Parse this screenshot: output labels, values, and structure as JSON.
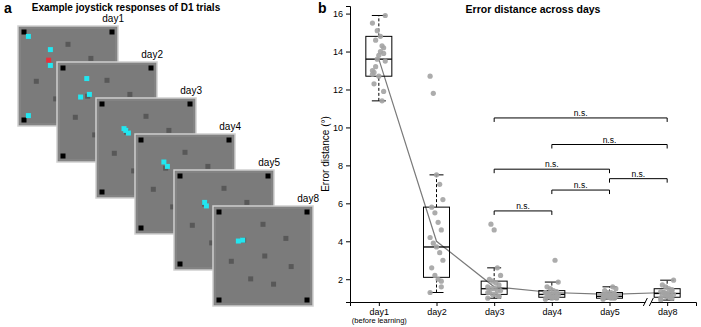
{
  "panel_a": {
    "panel_label": "a",
    "title": "Example joystick responses of D1 trials",
    "days": [
      "day1",
      "day2",
      "day3",
      "day4",
      "day5",
      "day8"
    ],
    "target": [
      0.28,
      0.32
    ],
    "target_marked": [
      true,
      false,
      false,
      false,
      false,
      false
    ],
    "target_color": "#e8303c",
    "response_color": "#22e6f0",
    "responses": [
      [
        [
          0.05,
          0.05
        ],
        [
          0.3,
          0.2
        ],
        [
          0.05,
          0.95
        ],
        [
          0.3,
          0.38
        ]
      ],
      [
        [
          0.27,
          0.12
        ],
        [
          0.2,
          0.33
        ],
        [
          0.3,
          0.3
        ]
      ],
      [
        [
          0.27,
          0.3
        ],
        [
          0.3,
          0.33
        ],
        [
          0.25,
          0.28
        ]
      ],
      [
        [
          0.26,
          0.25
        ],
        [
          0.3,
          0.3
        ]
      ],
      [
        [
          0.28,
          0.3
        ],
        [
          0.3,
          0.34
        ]
      ],
      [
        [
          0.22,
          0.33
        ],
        [
          0.27,
          0.32
        ]
      ]
    ]
  },
  "chart_data": {
    "type": "box",
    "panel_label": "b",
    "title": "Error distance across days",
    "y_label": "Error distance (°)",
    "categories": [
      "day1",
      "day2",
      "day3",
      "day4",
      "day5",
      "day8"
    ],
    "category_notes": [
      "(before learning)",
      null,
      null,
      null,
      null,
      null
    ],
    "boxes": {
      "whisker_low": [
        11.4,
        1.3,
        1.0,
        0.95,
        0.95,
        0.9
      ],
      "q1": [
        12.7,
        2.1,
        1.2,
        1.05,
        1.0,
        1.05
      ],
      "median": [
        13.6,
        3.7,
        1.5,
        1.2,
        1.1,
        1.25
      ],
      "q3": [
        14.8,
        5.8,
        1.9,
        1.4,
        1.3,
        1.5
      ],
      "whisker_high": [
        15.9,
        7.5,
        2.6,
        1.85,
        1.6,
        1.95
      ]
    },
    "points": [
      [
        13.0,
        13.9,
        14.8,
        15.1,
        12.3,
        13.5,
        14.3,
        12.7,
        13.2,
        15.5,
        11.9,
        14.0,
        13.6,
        12.9,
        15.9,
        11.4,
        13.8,
        14.6,
        12.8,
        14.2
      ],
      [
        1.3,
        1.6,
        2.0,
        2.2,
        2.6,
        3.0,
        3.4,
        3.7,
        3.9,
        4.2,
        4.6,
        5.0,
        5.5,
        5.8,
        6.2,
        7.0,
        7.5,
        11.8,
        12.7,
        1.9
      ],
      [
        1.0,
        1.1,
        1.2,
        1.2,
        1.3,
        1.4,
        1.4,
        1.5,
        1.5,
        1.6,
        1.7,
        1.8,
        1.9,
        2.0,
        2.2,
        2.6,
        4.6,
        4.9,
        1.3,
        1.1
      ],
      [
        0.95,
        1.0,
        1.05,
        1.1,
        1.1,
        1.15,
        1.2,
        1.2,
        1.25,
        1.3,
        1.35,
        1.4,
        1.5,
        1.6,
        1.85,
        3.0,
        1.0,
        1.2,
        1.3,
        1.1
      ],
      [
        0.95,
        1.0,
        1.0,
        1.05,
        1.1,
        1.1,
        1.1,
        1.15,
        1.2,
        1.2,
        1.25,
        1.3,
        1.3,
        1.4,
        1.5,
        1.6,
        1.05,
        1.15,
        1.0,
        1.2
      ],
      [
        0.9,
        1.0,
        1.05,
        1.1,
        1.15,
        1.2,
        1.25,
        1.25,
        1.3,
        1.35,
        1.4,
        1.5,
        1.6,
        1.7,
        1.95,
        1.1,
        1.2,
        1.3,
        1.0,
        1.45
      ]
    ],
    "line_values": [
      13.6,
      4.0,
      1.6,
      1.3,
      1.2,
      1.3
    ],
    "comparisons": [
      {
        "from": 2,
        "to": 5,
        "y": 10.5,
        "label": "n.s."
      },
      {
        "from": 3,
        "to": 5,
        "y": 9.1,
        "label": "n.s."
      },
      {
        "from": 2,
        "to": 4,
        "y": 7.8,
        "label": "n.s."
      },
      {
        "from": 4,
        "to": 5,
        "y": 7.3,
        "label": "n.s."
      },
      {
        "from": 3,
        "to": 4,
        "y": 6.7,
        "label": "n.s."
      },
      {
        "from": 2,
        "to": 3,
        "y": 5.6,
        "label": "n.s."
      }
    ],
    "ylim": [
      0.8,
      16.4
    ],
    "yticks": [
      2,
      4,
      6,
      8,
      10,
      12,
      14,
      16
    ]
  }
}
